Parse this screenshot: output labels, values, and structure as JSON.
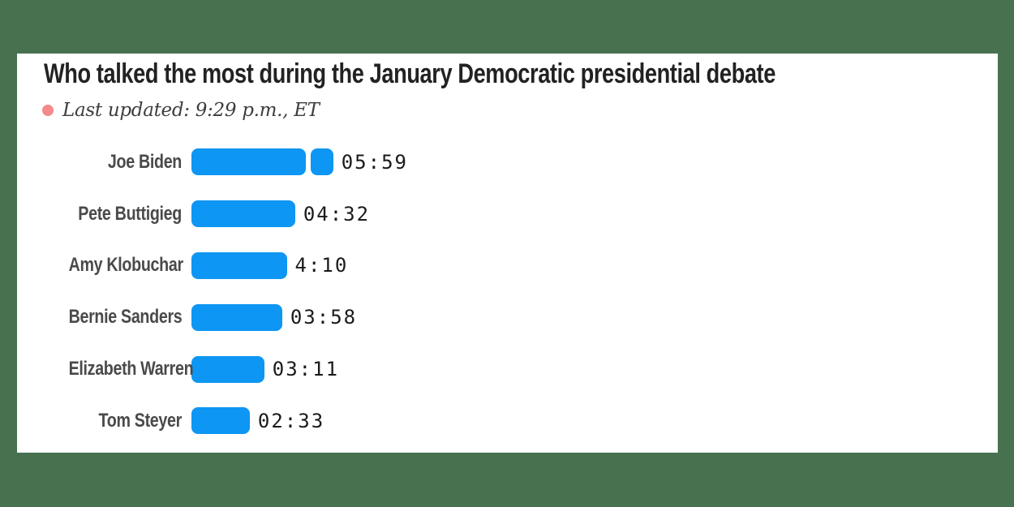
{
  "colors": {
    "background": "#487150",
    "card": "#ffffff",
    "bar": "#0d96f3",
    "dot": "#f48a8a",
    "title": "#222222",
    "label": "#4a4a4a",
    "subtitle": "#3d3d3d",
    "value": "#1a1a1a"
  },
  "chart_data": {
    "type": "bar",
    "orientation": "horizontal",
    "title": "Who talked the most during the January Democratic presidential debate",
    "subtitle": "Last updated: 9:29 p.m., ET",
    "unit": "minutes:seconds of speaking time",
    "segment_seconds": 300,
    "legend": false,
    "grid": false,
    "categories": [
      "Joe Biden",
      "Pete Buttigieg",
      "Amy Klobuchar",
      "Bernie Sanders",
      "Elizabeth Warren",
      "Tom Steyer"
    ],
    "rows": [
      {
        "name": "Joe Biden",
        "time": "05:59",
        "seconds": 359
      },
      {
        "name": "Pete Buttigieg",
        "time": "04:32",
        "seconds": 272
      },
      {
        "name": "Amy Klobuchar",
        "time": "4:10",
        "seconds": 250
      },
      {
        "name": "Bernie Sanders",
        "time": "03:58",
        "seconds": 238
      },
      {
        "name": "Elizabeth Warren",
        "time": "03:11",
        "seconds": 191
      },
      {
        "name": "Tom Steyer",
        "time": "02:33",
        "seconds": 153
      }
    ]
  }
}
